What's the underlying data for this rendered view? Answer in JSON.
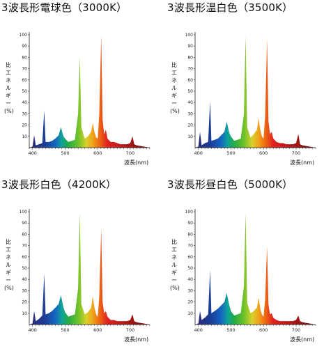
{
  "chart_data": [
    {
      "type": "area",
      "title": "3波長形電球色（3000K）",
      "xlabel": "波長(nm)",
      "ylabel": "比エネルギー(%)",
      "xlim": [
        390,
        760
      ],
      "ylim": [
        0,
        100
      ],
      "xticks": [
        400,
        500,
        600,
        700
      ],
      "yticks": [
        10,
        20,
        30,
        40,
        50,
        60,
        70,
        80,
        90,
        100
      ],
      "x": [
        390,
        400,
        405,
        410,
        420,
        430,
        436,
        440,
        450,
        460,
        470,
        480,
        487,
        495,
        500,
        510,
        520,
        530,
        540,
        545,
        550,
        560,
        570,
        580,
        585,
        590,
        595,
        600,
        605,
        611,
        615,
        620,
        625,
        630,
        640,
        650,
        660,
        670,
        680,
        690,
        700,
        707,
        712,
        720,
        740,
        760
      ],
      "values": [
        0,
        1,
        11,
        2,
        3,
        4,
        33,
        5,
        5,
        6,
        8,
        11,
        18,
        10,
        8,
        5,
        6,
        7,
        30,
        81,
        18,
        8,
        10,
        14,
        22,
        14,
        9,
        8,
        30,
        99,
        25,
        12,
        16,
        8,
        5,
        5,
        4,
        3,
        3,
        3,
        4,
        10,
        3,
        2,
        1,
        0
      ]
    },
    {
      "type": "area",
      "title": "3波長形温白色（3500K）",
      "xlabel": "波長(nm)",
      "ylabel": "比エネルギー(%)",
      "xlim": [
        390,
        760
      ],
      "ylim": [
        0,
        100
      ],
      "xticks": [
        400,
        500,
        600,
        700
      ],
      "yticks": [
        10,
        20,
        30,
        40,
        50,
        60,
        70,
        80,
        90,
        100
      ],
      "x": [
        390,
        400,
        405,
        410,
        420,
        430,
        436,
        440,
        450,
        460,
        470,
        480,
        487,
        495,
        500,
        510,
        520,
        530,
        540,
        545,
        550,
        560,
        570,
        580,
        585,
        590,
        595,
        600,
        605,
        611,
        615,
        620,
        625,
        630,
        640,
        650,
        660,
        670,
        680,
        690,
        700,
        707,
        712,
        720,
        740,
        760
      ],
      "values": [
        0,
        1,
        14,
        2,
        4,
        5,
        41,
        6,
        7,
        8,
        11,
        14,
        23,
        13,
        10,
        6,
        7,
        8,
        30,
        99,
        18,
        9,
        12,
        16,
        26,
        16,
        10,
        8,
        28,
        96,
        24,
        12,
        14,
        8,
        5,
        4,
        4,
        3,
        3,
        3,
        4,
        12,
        3,
        2,
        1,
        0
      ]
    },
    {
      "type": "area",
      "title": "3波長形白色（4200K）",
      "xlabel": "波長(nm)",
      "ylabel": "比エネルギー(%)",
      "xlim": [
        390,
        760
      ],
      "ylim": [
        0,
        100
      ],
      "xticks": [
        400,
        500,
        600,
        700
      ],
      "yticks": [
        10,
        20,
        30,
        40,
        50,
        60,
        70,
        80,
        90,
        100
      ],
      "x": [
        390,
        400,
        405,
        410,
        420,
        430,
        436,
        440,
        450,
        460,
        470,
        480,
        487,
        495,
        500,
        510,
        520,
        530,
        540,
        545,
        550,
        560,
        570,
        580,
        585,
        590,
        595,
        600,
        605,
        611,
        615,
        620,
        625,
        630,
        640,
        650,
        660,
        670,
        680,
        690,
        700,
        707,
        712,
        720,
        740,
        760
      ],
      "values": [
        0,
        1,
        12,
        3,
        5,
        8,
        45,
        9,
        10,
        12,
        15,
        18,
        26,
        15,
        11,
        7,
        8,
        9,
        32,
        99,
        18,
        9,
        11,
        15,
        25,
        15,
        9,
        7,
        25,
        85,
        20,
        10,
        12,
        7,
        4,
        4,
        3,
        3,
        3,
        3,
        4,
        9,
        3,
        2,
        1,
        0
      ]
    },
    {
      "type": "area",
      "title": "3波長形昼白色（5000K）",
      "xlabel": "波長(nm)",
      "ylabel": "比エネルギー(%)",
      "xlim": [
        390,
        760
      ],
      "ylim": [
        0,
        100
      ],
      "xticks": [
        400,
        500,
        600,
        700
      ],
      "yticks": [
        10,
        20,
        30,
        40,
        50,
        60,
        70,
        80,
        90,
        100
      ],
      "x": [
        390,
        400,
        405,
        410,
        420,
        430,
        436,
        440,
        450,
        460,
        470,
        480,
        487,
        495,
        500,
        510,
        520,
        530,
        540,
        545,
        550,
        560,
        570,
        580,
        585,
        590,
        595,
        600,
        605,
        611,
        615,
        620,
        625,
        630,
        640,
        650,
        660,
        670,
        680,
        690,
        700,
        707,
        712,
        720,
        740,
        760
      ],
      "values": [
        0,
        1,
        12,
        4,
        6,
        9,
        48,
        10,
        12,
        14,
        17,
        20,
        28,
        17,
        12,
        8,
        9,
        10,
        34,
        99,
        19,
        10,
        12,
        15,
        24,
        14,
        9,
        7,
        22,
        69,
        18,
        9,
        10,
        6,
        4,
        3,
        3,
        3,
        3,
        3,
        4,
        8,
        3,
        2,
        1,
        0
      ]
    }
  ]
}
